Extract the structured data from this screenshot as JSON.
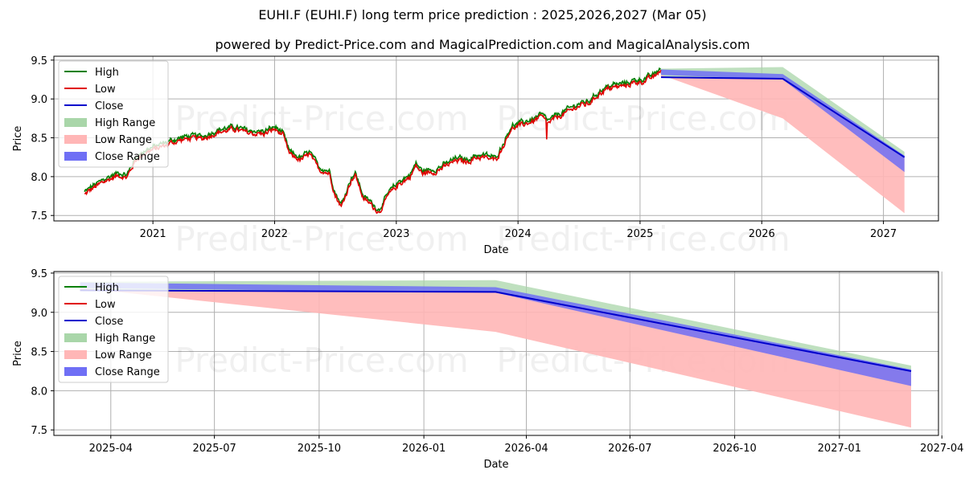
{
  "header": {
    "title": "EUHI.F (EUHI.F) long term price prediction : 2025,2026,2027 (Mar 05)",
    "subtitle": "powered by Predict-Price.com and MagicalPrediction.com and MagicalAnalysis.com"
  },
  "watermark": "Predict-Price.com",
  "colors": {
    "high": "#008000",
    "low": "#e00000",
    "close": "#0000cc",
    "high_range": "#a9d6a9",
    "low_range": "#ffb6b6",
    "close_range": "#6f6ff5"
  },
  "chart_data": [
    {
      "type": "line",
      "xlabel": "Date",
      "ylabel": "Price",
      "x_start": "2020-06-01",
      "xlim": [
        "2020-03-10",
        "2027-06-15"
      ],
      "ylim": [
        7.43,
        9.55
      ],
      "xticks": [
        "2021-01-01",
        "2022-01-01",
        "2023-01-01",
        "2024-01-01",
        "2025-01-01",
        "2026-01-01",
        "2027-01-01"
      ],
      "xtick_labels": [
        "2021",
        "2022",
        "2023",
        "2024",
        "2025",
        "2026",
        "2027"
      ],
      "yticks": [
        7.5,
        8.0,
        8.5,
        9.0,
        9.5
      ],
      "ytick_labels": [
        "7.5",
        "8.0",
        "8.5",
        "9.0",
        "9.5"
      ],
      "grid": true,
      "legend": "top-left",
      "history_anchors": [
        [
          "2020-06-10",
          7.78
        ],
        [
          "2020-07-05",
          7.86
        ],
        [
          "2020-08-10",
          7.95
        ],
        [
          "2020-09-20",
          8.03
        ],
        [
          "2020-10-15",
          8.0
        ],
        [
          "2020-11-10",
          8.22
        ],
        [
          "2020-12-10",
          8.32
        ],
        [
          "2021-01-15",
          8.38
        ],
        [
          "2021-03-01",
          8.45
        ],
        [
          "2021-04-15",
          8.5
        ],
        [
          "2021-06-01",
          8.5
        ],
        [
          "2021-07-15",
          8.58
        ],
        [
          "2021-09-01",
          8.62
        ],
        [
          "2021-10-15",
          8.57
        ],
        [
          "2021-12-01",
          8.56
        ],
        [
          "2022-01-01",
          8.62
        ],
        [
          "2022-01-25",
          8.55
        ],
        [
          "2022-02-15",
          8.3
        ],
        [
          "2022-03-20",
          8.22
        ],
        [
          "2022-04-15",
          8.3
        ],
        [
          "2022-05-15",
          8.1
        ],
        [
          "2022-06-15",
          8.05
        ],
        [
          "2022-07-01",
          7.78
        ],
        [
          "2022-07-20",
          7.62
        ],
        [
          "2022-08-20",
          7.98
        ],
        [
          "2022-09-01",
          8.02
        ],
        [
          "2022-09-25",
          7.72
        ],
        [
          "2022-10-15",
          7.66
        ],
        [
          "2022-11-10",
          7.55
        ],
        [
          "2022-12-10",
          7.78
        ],
        [
          "2023-01-10",
          7.92
        ],
        [
          "2023-02-10",
          8.0
        ],
        [
          "2023-03-01",
          8.15
        ],
        [
          "2023-03-20",
          8.05
        ],
        [
          "2023-05-01",
          8.08
        ],
        [
          "2023-06-01",
          8.15
        ],
        [
          "2023-07-01",
          8.22
        ],
        [
          "2023-08-01",
          8.2
        ],
        [
          "2023-09-01",
          8.26
        ],
        [
          "2023-10-01",
          8.25
        ],
        [
          "2023-10-25",
          8.22
        ],
        [
          "2023-11-15",
          8.38
        ],
        [
          "2023-12-10",
          8.62
        ],
        [
          "2024-01-15",
          8.68
        ],
        [
          "2024-02-15",
          8.72
        ],
        [
          "2024-03-10",
          8.78
        ],
        [
          "2024-04-01",
          8.7
        ],
        [
          "2024-05-01",
          8.78
        ],
        [
          "2024-06-01",
          8.85
        ],
        [
          "2024-07-01",
          8.92
        ],
        [
          "2024-08-01",
          8.95
        ],
        [
          "2024-09-01",
          9.08
        ],
        [
          "2024-10-01",
          9.15
        ],
        [
          "2024-11-15",
          9.18
        ],
        [
          "2024-12-15",
          9.22
        ],
        [
          "2025-01-15",
          9.24
        ],
        [
          "2025-02-15",
          9.3
        ],
        [
          "2025-03-05",
          9.39
        ]
      ],
      "history_dips": [
        [
          "2024-03-28",
          8.48
        ]
      ],
      "forecast": {
        "dates": [
          "2025-03-05",
          "2026-03-05",
          "2027-03-05"
        ],
        "high": [
          9.39,
          9.41,
          8.32
        ],
        "low": [
          9.31,
          8.75,
          7.53
        ],
        "close": [
          9.28,
          9.26,
          8.25
        ],
        "close_upper": [
          9.38,
          9.32,
          8.27
        ],
        "close_lower": [
          9.31,
          9.25,
          8.06
        ]
      }
    },
    {
      "type": "area",
      "xlabel": "Date",
      "ylabel": "Price",
      "xlim": [
        "2025-02-10",
        "2027-03-29"
      ],
      "ylim": [
        7.43,
        9.52
      ],
      "xticks": [
        "2025-04-01",
        "2025-07-01",
        "2025-10-01",
        "2026-01-01",
        "2026-04-01",
        "2026-07-01",
        "2026-10-01",
        "2027-01-01",
        "2027-04-01"
      ],
      "xtick_labels": [
        "2025-04",
        "2025-07",
        "2025-10",
        "2026-01",
        "2026-04",
        "2026-07",
        "2026-10",
        "2027-01",
        "2027-04"
      ],
      "yticks": [
        7.5,
        8.0,
        8.5,
        9.0,
        9.5
      ],
      "ytick_labels": [
        "7.5",
        "8.0",
        "8.5",
        "9.0",
        "9.5"
      ],
      "grid": true,
      "legend": "top-left",
      "forecast": {
        "dates": [
          "2025-03-05",
          "2026-03-05",
          "2027-03-05"
        ],
        "high": [
          9.39,
          9.41,
          8.32
        ],
        "low": [
          9.31,
          8.75,
          7.53
        ],
        "close": [
          9.28,
          9.26,
          8.25
        ],
        "close_upper": [
          9.38,
          9.32,
          8.27
        ],
        "close_lower": [
          9.31,
          9.25,
          8.06
        ]
      }
    }
  ],
  "legend_items": [
    {
      "label": "High",
      "kind": "line",
      "color_key": "high"
    },
    {
      "label": "Low",
      "kind": "line",
      "color_key": "low"
    },
    {
      "label": "Close",
      "kind": "line",
      "color_key": "close"
    },
    {
      "label": "High Range",
      "kind": "patch",
      "color_key": "high_range"
    },
    {
      "label": "Low Range",
      "kind": "patch",
      "color_key": "low_range"
    },
    {
      "label": "Close Range",
      "kind": "patch",
      "color_key": "close_range"
    }
  ]
}
